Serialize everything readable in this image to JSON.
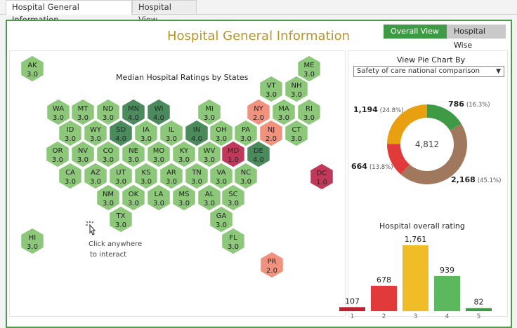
{
  "tabs": [
    {
      "label": "Hospital General Information",
      "active": true
    },
    {
      "label": "Hospital View",
      "active": false
    }
  ],
  "dashboard": {
    "title": "Hospital General Information",
    "toggle": {
      "overall": "Overall View",
      "wise": "Hospital Wise"
    }
  },
  "map": {
    "title": "Median Hospital Ratings by States",
    "hint_line1": "Click anywhere",
    "hint_line2": "to interact",
    "colors": {
      "2.0": "#f0927e",
      "3.0": "#8dc87a",
      "4.0": "#4a8a5c",
      "1.0": "#c0395a"
    },
    "md_color": "#c0395a",
    "states": [
      {
        "abbr": "AK",
        "rating": "3.0"
      },
      {
        "abbr": "ME",
        "rating": "3.0"
      },
      {
        "abbr": "VT",
        "rating": "3.0"
      },
      {
        "abbr": "NH",
        "rating": "3.0"
      },
      {
        "abbr": "WA",
        "rating": "3.0"
      },
      {
        "abbr": "MT",
        "rating": "3.0"
      },
      {
        "abbr": "ND",
        "rating": "3.0"
      },
      {
        "abbr": "MN",
        "rating": "4.0"
      },
      {
        "abbr": "WI",
        "rating": "4.0"
      },
      {
        "abbr": "MI",
        "rating": "3.0"
      },
      {
        "abbr": "NY",
        "rating": "2.0"
      },
      {
        "abbr": "MA",
        "rating": "3.0"
      },
      {
        "abbr": "RI",
        "rating": "3.0"
      },
      {
        "abbr": "ID",
        "rating": "3.0"
      },
      {
        "abbr": "WY",
        "rating": "3.0"
      },
      {
        "abbr": "SD",
        "rating": "4.0"
      },
      {
        "abbr": "IA",
        "rating": "3.0"
      },
      {
        "abbr": "IL",
        "rating": "3.0"
      },
      {
        "abbr": "IN",
        "rating": "4.0"
      },
      {
        "abbr": "OH",
        "rating": "3.0"
      },
      {
        "abbr": "PA",
        "rating": "3.0"
      },
      {
        "abbr": "NJ",
        "rating": "2.0"
      },
      {
        "abbr": "CT",
        "rating": "3.0"
      },
      {
        "abbr": "OR",
        "rating": "3.0"
      },
      {
        "abbr": "NV",
        "rating": "3.0"
      },
      {
        "abbr": "CO",
        "rating": "3.0"
      },
      {
        "abbr": "NE",
        "rating": "3.0"
      },
      {
        "abbr": "MO",
        "rating": "3.0"
      },
      {
        "abbr": "KY",
        "rating": "3.0"
      },
      {
        "abbr": "WV",
        "rating": "3.0"
      },
      {
        "abbr": "MD",
        "rating": "1.0"
      },
      {
        "abbr": "DE",
        "rating": "4.0"
      },
      {
        "abbr": "DC",
        "rating": "1.0"
      },
      {
        "abbr": "CA",
        "rating": "3.0"
      },
      {
        "abbr": "AZ",
        "rating": "3.0"
      },
      {
        "abbr": "UT",
        "rating": "3.0"
      },
      {
        "abbr": "KS",
        "rating": "3.0"
      },
      {
        "abbr": "AR",
        "rating": "3.0"
      },
      {
        "abbr": "TN",
        "rating": "3.0"
      },
      {
        "abbr": "VA",
        "rating": "3.0"
      },
      {
        "abbr": "NC",
        "rating": "3.0"
      },
      {
        "abbr": "NM",
        "rating": "3.0"
      },
      {
        "abbr": "OK",
        "rating": "3.0"
      },
      {
        "abbr": "LA",
        "rating": "3.0"
      },
      {
        "abbr": "MS",
        "rating": "3.0"
      },
      {
        "abbr": "AL",
        "rating": "3.0"
      },
      {
        "abbr": "SC",
        "rating": "3.0"
      },
      {
        "abbr": "TX",
        "rating": "3.0"
      },
      {
        "abbr": "GA",
        "rating": "3.0"
      },
      {
        "abbr": "HI",
        "rating": "3.0"
      },
      {
        "abbr": "FL",
        "rating": "3.0"
      },
      {
        "abbr": "PR",
        "rating": "2.0"
      }
    ]
  },
  "pie_control": {
    "label": "View Pie Chart By",
    "selected": "Safety of care national comparison"
  },
  "chart_data": [
    {
      "type": "pie",
      "title": "Safety of care national comparison",
      "center_total": "4,812",
      "slices": [
        {
          "value": 786,
          "label": "786",
          "pct": "(16.3%)",
          "color": "#3f9a46"
        },
        {
          "value": 2168,
          "label": "2,168",
          "pct": "(45.1%)",
          "color": "#a0785e"
        },
        {
          "value": 664,
          "label": "664",
          "pct": "(13.8%)",
          "color": "#e03a3a"
        },
        {
          "value": 1194,
          "label": "1,194",
          "pct": "(24.8%)",
          "color": "#e8a010"
        }
      ]
    },
    {
      "type": "bar",
      "title": "Hospital overall rating",
      "categories": [
        "1",
        "2",
        "3",
        "4",
        "5"
      ],
      "values": [
        107,
        678,
        1761,
        939,
        82
      ],
      "value_labels": [
        "107",
        "678",
        "1,761",
        "939",
        "82"
      ],
      "colors": [
        "#c01f2e",
        "#e23a3a",
        "#f0bc28",
        "#5cb85c",
        "#3f9a46"
      ],
      "ylim": [
        0,
        1761
      ]
    }
  ]
}
